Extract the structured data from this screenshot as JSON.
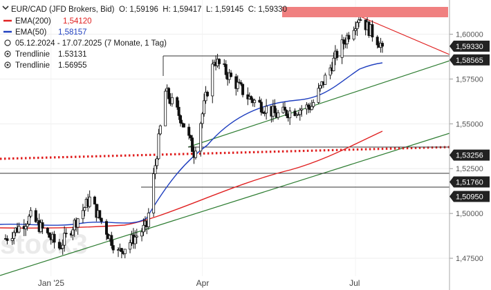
{
  "header": {
    "instrument": "EUR/CAD (JFD Brokers, Bid)",
    "ohlc": "O: 1,59196  H: 1,59417  L: 1,59145  C: 1,59330",
    "ema200_label": "EMA(200)",
    "ema200_value": "1,54120",
    "ema50_label": "EMA(50)",
    "ema50_value": "1,58157",
    "range": "05.12.2024 - 17.07.2025",
    "range_detail": "(7 Monate, 1 Tag)",
    "trend1_label": "Trendlinie",
    "trend1_value": "1.53131",
    "trend2_label": "Trendlinie",
    "trend2_value": "1.56955"
  },
  "watermark": "stock3",
  "colors": {
    "candle_up": "#ffffff",
    "candle_down": "#111111",
    "ema200": "#e02020",
    "ema50": "#1f3fbf",
    "trendline_support": "#2e7d32",
    "trendline_resistance": "#e02020",
    "resistance_dotted": "#e02020",
    "price_tag": "#222222",
    "highlight_band": "#f08080"
  },
  "chart_data": {
    "type": "candlestick",
    "ylim": [
      1.465,
      1.616
    ],
    "y_ticks": [
      "1,60000",
      "1,57500",
      "1,55000",
      "1,52500",
      "1,50000",
      "1,47500"
    ],
    "y_tick_values": [
      1.6,
      1.575,
      1.55,
      1.525,
      1.5,
      1.475
    ],
    "x_labels": [
      "Jan '25",
      "Apr",
      "Jul"
    ],
    "price_levels": [
      {
        "label": "1,59330",
        "value": 1.5933,
        "kind": "current"
      },
      {
        "label": "1,58565",
        "value": 1.58565,
        "kind": "horizontal"
      },
      {
        "label": "1,53256",
        "value": 1.53256,
        "kind": "dotted"
      },
      {
        "label": "1,51760",
        "value": 1.5176,
        "kind": "horizontal"
      },
      {
        "label": "1,50950",
        "value": 1.5095,
        "kind": "horizontal"
      }
    ],
    "series": [
      {
        "name": "EMA(200)",
        "values_start": 1.486,
        "values_end": 1.5412
      },
      {
        "name": "EMA(50)",
        "values_start": 1.488,
        "values_end": 1.58157
      }
    ],
    "ohlc_keypoints": [
      {
        "date": "2024-12-05",
        "close": 1.486
      },
      {
        "date": "2024-12-20",
        "close": 1.498
      },
      {
        "date": "2025-01-06",
        "close": 1.481
      },
      {
        "date": "2025-01-24",
        "close": 1.508
      },
      {
        "date": "2025-02-10",
        "close": 1.478
      },
      {
        "date": "2025-02-27",
        "close": 1.493
      },
      {
        "date": "2025-03-10",
        "close": 1.568
      },
      {
        "date": "2025-03-20",
        "close": 1.552
      },
      {
        "date": "2025-03-27",
        "close": 1.534
      },
      {
        "date": "2025-04-08",
        "close": 1.586
      },
      {
        "date": "2025-04-28",
        "close": 1.565
      },
      {
        "date": "2025-05-15",
        "close": 1.555
      },
      {
        "date": "2025-06-05",
        "close": 1.56
      },
      {
        "date": "2025-06-20",
        "close": 1.589
      },
      {
        "date": "2025-07-03",
        "close": 1.61
      },
      {
        "date": "2025-07-17",
        "close": 1.5933
      }
    ]
  }
}
